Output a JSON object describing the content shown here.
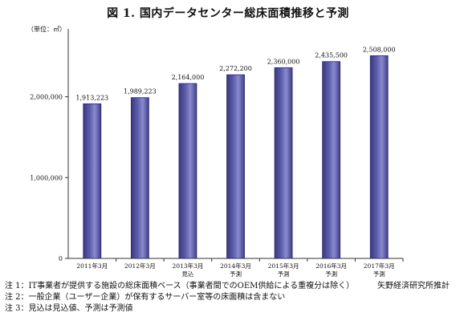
{
  "chart_data": {
    "type": "bar",
    "title": "図 1.  国内データセンター総床面積推移と予測",
    "unit_label": "（単位：㎡）",
    "categories": [
      [
        "2011年3月"
      ],
      [
        "2012年3月"
      ],
      [
        "2013年3月",
        "見込"
      ],
      [
        "2014年3月",
        "予測"
      ],
      [
        "2015年3月",
        "予測"
      ],
      [
        "2016年3月",
        "予測"
      ],
      [
        "2017年3月",
        "予測"
      ]
    ],
    "values": [
      1913223,
      1989223,
      2164000,
      2272200,
      2360000,
      2435500,
      2508000
    ],
    "value_labels": [
      "1,913,223",
      "1,989,223",
      "2,164,000",
      "2,272,200",
      "2,360,000",
      "2,435,500",
      "2,508,000"
    ],
    "yticks": [
      0,
      1000000,
      2000000
    ],
    "ytick_labels": [
      "0",
      "1,000,000",
      "2,000,000"
    ],
    "ylim": [
      0,
      2800000
    ],
    "bar_color": "#5a5aa8",
    "grid": false
  },
  "notes": [
    "注 1：IT事業者が提供する施設の総床面積ベース（事業者間でのOEM供給による重複分は除く）",
    "注 2：一般企業（ユーザー企業）が保有するサーバー室等の床面積は含まない",
    "注 3：見込は見込値、予測は予測値"
  ],
  "source": "矢野経済研究所推計"
}
